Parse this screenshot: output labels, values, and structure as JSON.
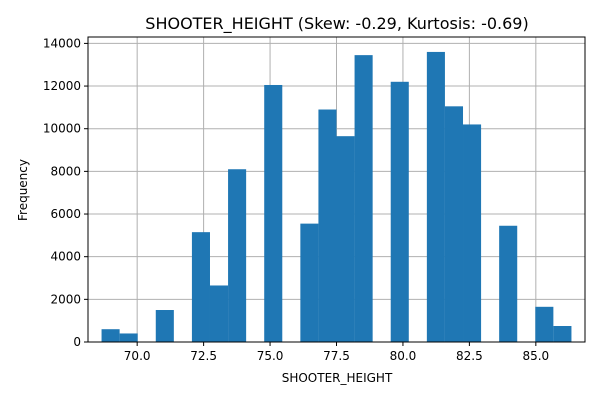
{
  "chart_data": {
    "type": "bar",
    "title": "SHOOTER_HEIGHT (Skew: -0.29, Kurtosis: -0.69)",
    "xlabel": "SHOOTER_HEIGHT",
    "ylabel": "Frequency",
    "xlim": [
      68.15,
      86.85
    ],
    "ylim": [
      0,
      14300
    ],
    "grid": true,
    "bar_color": "#1f77b4",
    "bin_width": 0.68,
    "bins": [
      {
        "x": 69.0,
        "value": 600
      },
      {
        "x": 69.68,
        "value": 400
      },
      {
        "x": 71.04,
        "value": 1500
      },
      {
        "x": 72.4,
        "value": 5150
      },
      {
        "x": 73.08,
        "value": 2650
      },
      {
        "x": 73.76,
        "value": 8100
      },
      {
        "x": 75.12,
        "value": 12050
      },
      {
        "x": 76.48,
        "value": 5550
      },
      {
        "x": 77.16,
        "value": 10900
      },
      {
        "x": 77.84,
        "value": 9650
      },
      {
        "x": 78.52,
        "value": 13450
      },
      {
        "x": 79.88,
        "value": 12200
      },
      {
        "x": 81.24,
        "value": 13600
      },
      {
        "x": 81.92,
        "value": 11050
      },
      {
        "x": 82.6,
        "value": 10200
      },
      {
        "x": 83.96,
        "value": 5450
      },
      {
        "x": 85.32,
        "value": 1650
      },
      {
        "x": 86.0,
        "value": 750
      }
    ],
    "x_ticks": [
      {
        "value": 70.0,
        "label": "70.0"
      },
      {
        "value": 72.5,
        "label": "72.5"
      },
      {
        "value": 75.0,
        "label": "75.0"
      },
      {
        "value": 77.5,
        "label": "77.5"
      },
      {
        "value": 80.0,
        "label": "80.0"
      },
      {
        "value": 82.5,
        "label": "82.5"
      },
      {
        "value": 85.0,
        "label": "85.0"
      }
    ],
    "y_ticks": [
      {
        "value": 0,
        "label": "0"
      },
      {
        "value": 2000,
        "label": "2000"
      },
      {
        "value": 4000,
        "label": "4000"
      },
      {
        "value": 6000,
        "label": "6000"
      },
      {
        "value": 8000,
        "label": "8000"
      },
      {
        "value": 10000,
        "label": "10000"
      },
      {
        "value": 12000,
        "label": "12000"
      },
      {
        "value": 14000,
        "label": "14000"
      }
    ]
  }
}
